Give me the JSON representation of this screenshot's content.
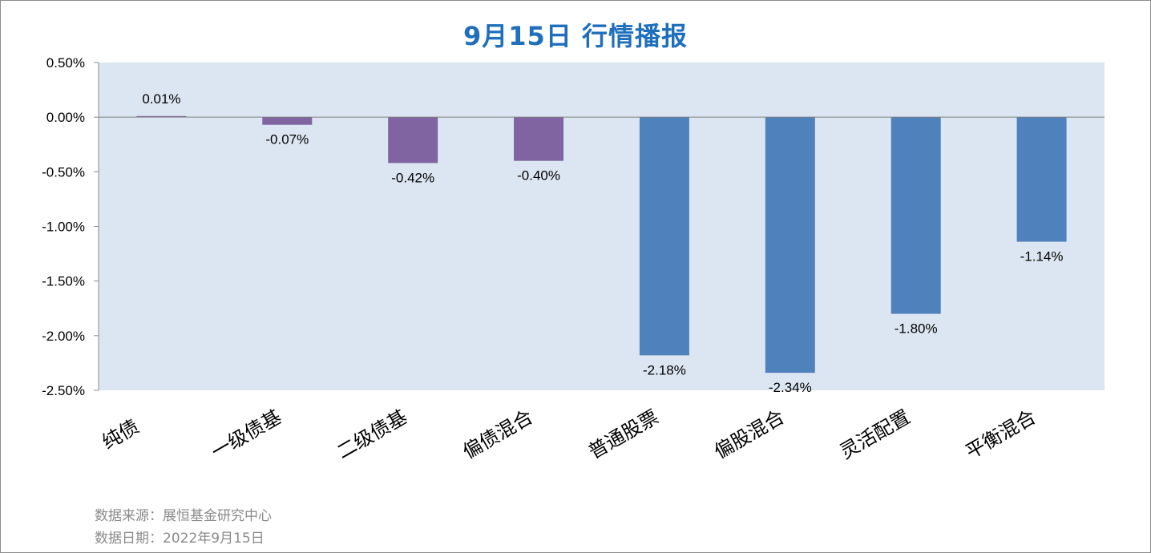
{
  "title": "9月15日  行情播报",
  "footer": {
    "source": "数据来源：展恒基金研究中心",
    "date": "数据日期：2022年9月15日"
  },
  "colors": {
    "plot_bg": "#dce6f2",
    "bond_bar": "#8064a2",
    "equity_bar": "#4f81bd",
    "title": "#1f6fbd",
    "footer_text": "#8a8a8a"
  },
  "chart_data": {
    "type": "bar",
    "categories": [
      "纯债",
      "一级债基",
      "二级债基",
      "偏债混合",
      "普通股票",
      "偏股混合",
      "灵活配置",
      "平衡混合"
    ],
    "values": [
      0.01,
      -0.07,
      -0.42,
      -0.4,
      -2.18,
      -2.34,
      -1.8,
      -1.14
    ],
    "value_labels": [
      "0.01%",
      "-0.07%",
      "-0.42%",
      "-0.40%",
      "-2.18%",
      "-2.34%",
      "-1.80%",
      "-1.14%"
    ],
    "bar_colors": [
      "#8064a2",
      "#8064a2",
      "#8064a2",
      "#8064a2",
      "#4f81bd",
      "#4f81bd",
      "#4f81bd",
      "#4f81bd"
    ],
    "yticks": [
      0.5,
      0.0,
      -0.5,
      -1.0,
      -1.5,
      -2.0,
      -2.5
    ],
    "ytick_labels": [
      "0.50%",
      "0.00%",
      "-0.50%",
      "-1.00%",
      "-1.50%",
      "-2.00%",
      "-2.50%"
    ],
    "ylim": [
      -2.5,
      0.5
    ],
    "grid": false,
    "legend": "none"
  }
}
